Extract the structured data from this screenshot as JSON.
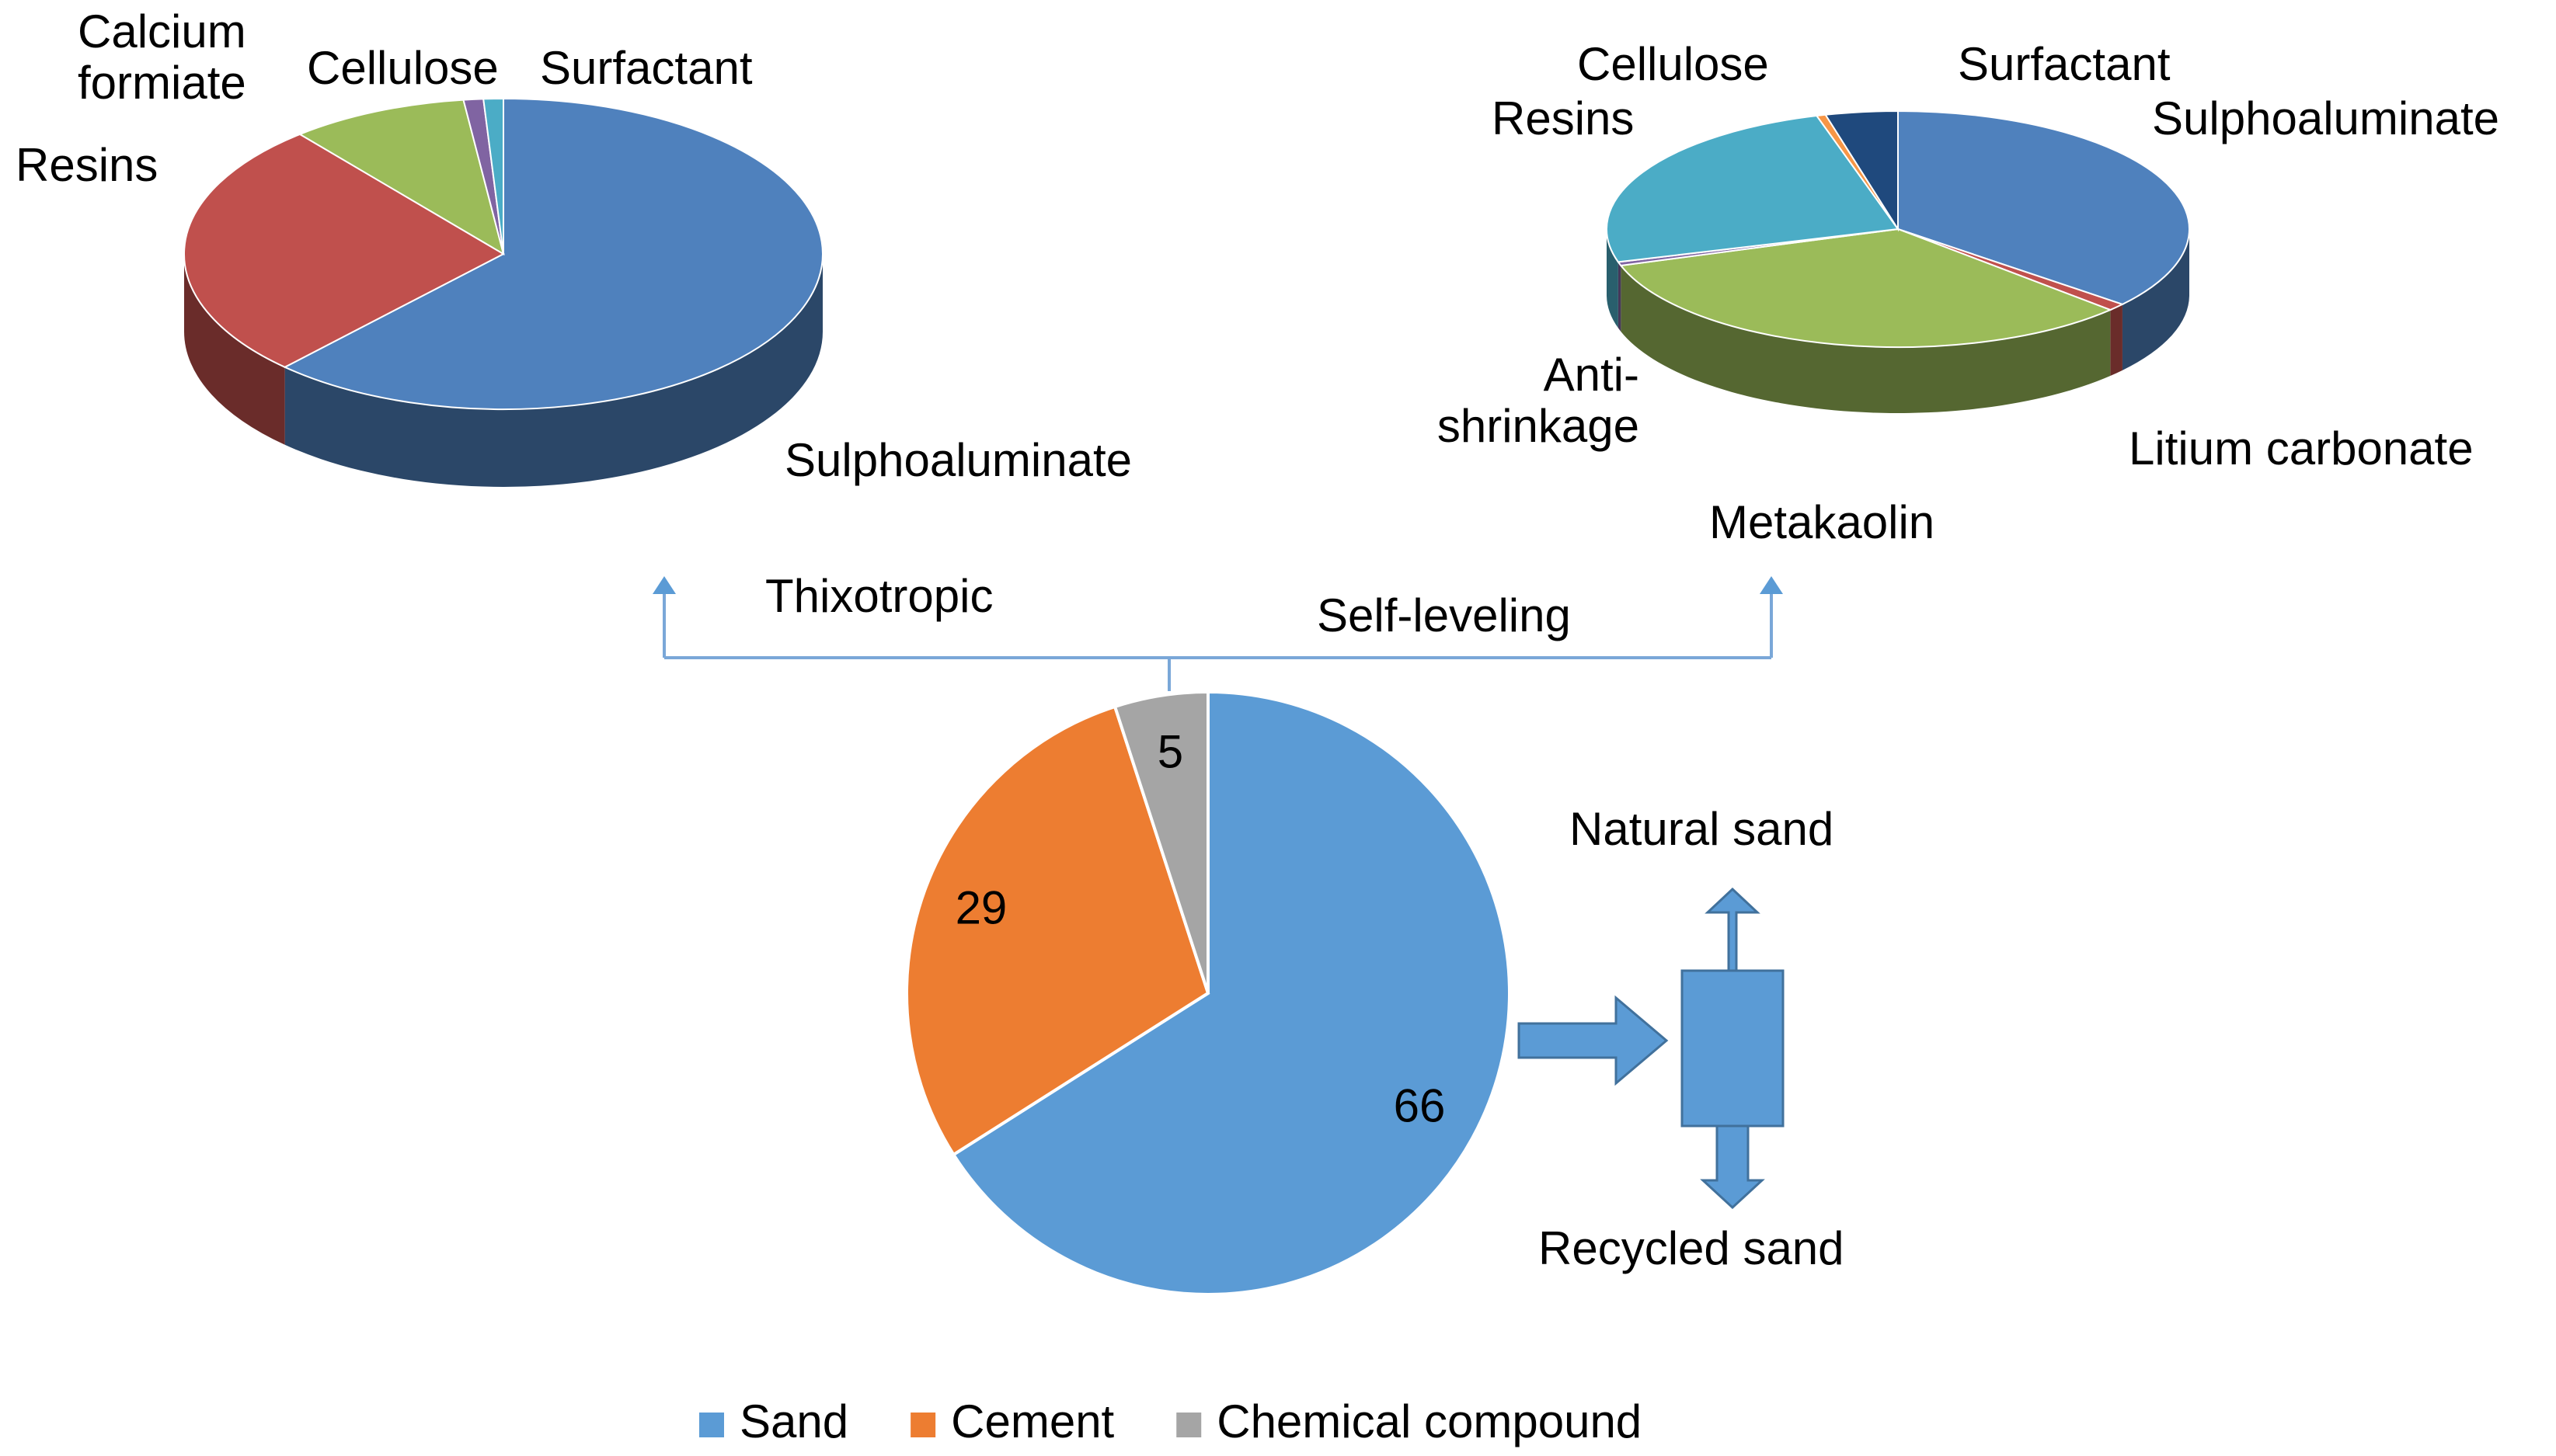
{
  "chart_data": [
    {
      "type": "pie3d",
      "categories": [
        "Sulphoaluminate",
        "Resins",
        "Calcium formiate",
        "Cellulose",
        "Surfactant"
      ],
      "values": [
        62,
        27,
        9,
        1,
        1
      ],
      "colors": [
        "#4f81bd",
        "#c0504d",
        "#9bbb59",
        "#8064a2",
        "#4bacc6"
      ]
    },
    {
      "type": "pie3d",
      "categories": [
        "Sulphoaluminate",
        "Litium carbonate",
        "Metakaolin",
        "Anti-shrinkage",
        "Resins",
        "Cellulose",
        "Surfactant"
      ],
      "values": [
        36,
        1,
        33,
        0.5,
        25,
        0.5,
        4
      ],
      "colors": [
        "#4f81bd",
        "#c0504d",
        "#9bbb59",
        "#8064a2",
        "#4bacc6",
        "#f79646",
        "#1f497d"
      ]
    },
    {
      "type": "pie",
      "categories": [
        "Sand",
        "Cement",
        "Chemical compound"
      ],
      "values": [
        66,
        29,
        5
      ],
      "colors": [
        "#5b9bd5",
        "#ed7d31",
        "#a5a5a5"
      ],
      "legend": "bottom"
    }
  ],
  "diagram": {
    "branches": [
      "Thixotropic",
      "Self-leveling"
    ],
    "sand_outputs": [
      "Natural sand",
      "Recycled sand"
    ]
  }
}
